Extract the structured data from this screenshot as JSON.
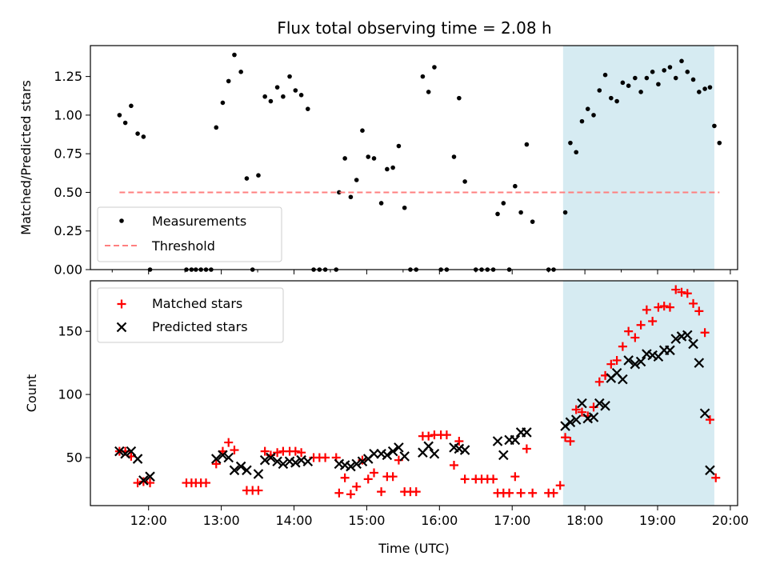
{
  "title": "Flux total observing time = 2.08 h",
  "chart_data": [
    {
      "type": "scatter",
      "ylabel": "Matched/Predicted stars",
      "xlabel": "",
      "xlim": [
        11.2,
        20.1
      ],
      "ylim": [
        0.0,
        1.45
      ],
      "yticks": [
        0.0,
        0.25,
        0.5,
        0.75,
        1.0,
        1.25
      ],
      "ytick_labels": [
        "0.00",
        "0.25",
        "0.50",
        "0.75",
        "1.00",
        "1.25"
      ],
      "shaded_x_range": [
        17.7,
        19.78
      ],
      "shade_color": "#add8e6",
      "legend": {
        "position": "lower-left",
        "entries": [
          "Measurements",
          "Threshold"
        ]
      },
      "series": [
        {
          "name": "Measurements",
          "marker": "dot",
          "color": "#000000",
          "points": [
            [
              11.6,
              1.0
            ],
            [
              11.68,
              0.95
            ],
            [
              11.76,
              1.06
            ],
            [
              11.85,
              0.88
            ],
            [
              11.93,
              0.86
            ],
            [
              12.02,
              0.0
            ],
            [
              12.52,
              0.0
            ],
            [
              12.59,
              0.0
            ],
            [
              12.65,
              0.0
            ],
            [
              12.72,
              0.0
            ],
            [
              12.79,
              0.0
            ],
            [
              12.86,
              0.0
            ],
            [
              12.93,
              0.92
            ],
            [
              13.02,
              1.08
            ],
            [
              13.1,
              1.22
            ],
            [
              13.18,
              1.39
            ],
            [
              13.27,
              1.28
            ],
            [
              13.35,
              0.59
            ],
            [
              13.43,
              0.0
            ],
            [
              13.51,
              0.61
            ],
            [
              13.6,
              1.12
            ],
            [
              13.68,
              1.09
            ],
            [
              13.77,
              1.18
            ],
            [
              13.85,
              1.12
            ],
            [
              13.94,
              1.25
            ],
            [
              14.02,
              1.16
            ],
            [
              14.1,
              1.13
            ],
            [
              14.19,
              1.04
            ],
            [
              14.27,
              0.0
            ],
            [
              14.35,
              0.0
            ],
            [
              14.43,
              0.0
            ],
            [
              14.58,
              0.0
            ],
            [
              14.62,
              0.5
            ],
            [
              14.7,
              0.72
            ],
            [
              14.78,
              0.47
            ],
            [
              14.86,
              0.58
            ],
            [
              14.94,
              0.9
            ],
            [
              15.02,
              0.73
            ],
            [
              15.1,
              0.72
            ],
            [
              15.2,
              0.43
            ],
            [
              15.28,
              0.65
            ],
            [
              15.36,
              0.66
            ],
            [
              15.44,
              0.8
            ],
            [
              15.52,
              0.4
            ],
            [
              15.6,
              0.0
            ],
            [
              15.68,
              0.0
            ],
            [
              15.77,
              1.25
            ],
            [
              15.85,
              1.15
            ],
            [
              15.93,
              1.31
            ],
            [
              16.02,
              0.0
            ],
            [
              16.1,
              0.0
            ],
            [
              16.2,
              0.73
            ],
            [
              16.27,
              1.11
            ],
            [
              16.35,
              0.57
            ],
            [
              16.5,
              0.0
            ],
            [
              16.58,
              0.0
            ],
            [
              16.66,
              0.0
            ],
            [
              16.74,
              0.0
            ],
            [
              16.8,
              0.36
            ],
            [
              16.88,
              0.43
            ],
            [
              16.96,
              0.0
            ],
            [
              17.04,
              0.54
            ],
            [
              17.12,
              0.37
            ],
            [
              17.2,
              0.81
            ],
            [
              17.28,
              0.31
            ],
            [
              17.5,
              0.0
            ],
            [
              17.57,
              0.0
            ],
            [
              17.73,
              0.37
            ],
            [
              17.8,
              0.82
            ],
            [
              17.88,
              0.76
            ],
            [
              17.96,
              0.96
            ],
            [
              18.04,
              1.04
            ],
            [
              18.12,
              1.0
            ],
            [
              18.2,
              1.16
            ],
            [
              18.28,
              1.26
            ],
            [
              18.36,
              1.11
            ],
            [
              18.44,
              1.09
            ],
            [
              18.52,
              1.21
            ],
            [
              18.6,
              1.19
            ],
            [
              18.69,
              1.24
            ],
            [
              18.77,
              1.15
            ],
            [
              18.85,
              1.24
            ],
            [
              18.93,
              1.28
            ],
            [
              19.01,
              1.2
            ],
            [
              19.09,
              1.29
            ],
            [
              19.17,
              1.31
            ],
            [
              19.25,
              1.24
            ],
            [
              19.33,
              1.35
            ],
            [
              19.41,
              1.28
            ],
            [
              19.49,
              1.23
            ],
            [
              19.57,
              1.15
            ],
            [
              19.65,
              1.17
            ],
            [
              19.72,
              1.18
            ],
            [
              19.78,
              0.93
            ],
            [
              19.85,
              0.82
            ]
          ]
        },
        {
          "name": "Threshold",
          "marker": "dashed-line",
          "color": "#ff7f7f",
          "points": [
            [
              11.6,
              0.5
            ],
            [
              19.85,
              0.5
            ]
          ]
        }
      ]
    },
    {
      "type": "scatter",
      "ylabel": "Count",
      "xlabel": "Time (UTC)",
      "xlim": [
        11.2,
        20.1
      ],
      "ylim": [
        12,
        190
      ],
      "yticks": [
        50,
        100,
        150
      ],
      "ytick_labels": [
        "50",
        "100",
        "150"
      ],
      "xticks": [
        12,
        13,
        14,
        15,
        16,
        17,
        18,
        19,
        20
      ],
      "xtick_labels": [
        "12:00",
        "13:00",
        "14:00",
        "15:00",
        "16:00",
        "17:00",
        "18:00",
        "19:00",
        "20:00"
      ],
      "shaded_x_range": [
        17.7,
        19.78
      ],
      "shade_color": "#add8e6",
      "legend": {
        "position": "top-left",
        "entries": [
          "Matched stars",
          "Predicted stars"
        ]
      },
      "series": [
        {
          "name": "Matched stars",
          "marker": "plus",
          "color": "#ff0000",
          "points": [
            [
              11.6,
              55
            ],
            [
              11.68,
              55
            ],
            [
              11.76,
              51
            ],
            [
              11.85,
              30
            ],
            [
              11.93,
              31
            ],
            [
              12.02,
              30
            ],
            [
              12.52,
              30
            ],
            [
              12.59,
              30
            ],
            [
              12.65,
              30
            ],
            [
              12.72,
              30
            ],
            [
              12.79,
              30
            ],
            [
              12.93,
              45
            ],
            [
              13.02,
              55
            ],
            [
              13.1,
              62
            ],
            [
              13.18,
              56
            ],
            [
              13.35,
              24
            ],
            [
              13.43,
              24
            ],
            [
              13.51,
              24
            ],
            [
              13.6,
              55
            ],
            [
              13.68,
              52
            ],
            [
              13.77,
              54
            ],
            [
              13.85,
              55
            ],
            [
              13.94,
              55
            ],
            [
              14.02,
              55
            ],
            [
              14.1,
              54
            ],
            [
              14.27,
              50
            ],
            [
              14.35,
              50
            ],
            [
              14.43,
              50
            ],
            [
              14.58,
              50
            ],
            [
              14.62,
              22
            ],
            [
              14.7,
              34
            ],
            [
              14.78,
              21
            ],
            [
              14.86,
              27
            ],
            [
              14.94,
              48
            ],
            [
              15.02,
              33
            ],
            [
              15.1,
              38
            ],
            [
              15.2,
              23
            ],
            [
              15.28,
              35
            ],
            [
              15.36,
              35
            ],
            [
              15.44,
              48
            ],
            [
              15.52,
              23
            ],
            [
              15.6,
              23
            ],
            [
              15.68,
              23
            ],
            [
              15.77,
              67
            ],
            [
              15.85,
              67
            ],
            [
              15.93,
              68
            ],
            [
              16.02,
              68
            ],
            [
              16.1,
              68
            ],
            [
              16.2,
              44
            ],
            [
              16.27,
              63
            ],
            [
              16.35,
              33
            ],
            [
              16.5,
              33
            ],
            [
              16.58,
              33
            ],
            [
              16.66,
              33
            ],
            [
              16.74,
              33
            ],
            [
              16.8,
              22
            ],
            [
              16.88,
              22
            ],
            [
              16.96,
              22
            ],
            [
              17.04,
              35
            ],
            [
              17.12,
              22
            ],
            [
              17.2,
              57
            ],
            [
              17.28,
              22
            ],
            [
              17.5,
              22
            ],
            [
              17.57,
              22
            ],
            [
              17.66,
              28
            ],
            [
              17.73,
              66
            ],
            [
              17.8,
              63
            ],
            [
              17.88,
              88
            ],
            [
              17.96,
              86
            ],
            [
              18.04,
              83
            ],
            [
              18.12,
              90
            ],
            [
              18.2,
              110
            ],
            [
              18.28,
              115
            ],
            [
              18.36,
              124
            ],
            [
              18.44,
              127
            ],
            [
              18.52,
              138
            ],
            [
              18.6,
              150
            ],
            [
              18.69,
              145
            ],
            [
              18.77,
              155
            ],
            [
              18.85,
              167
            ],
            [
              18.93,
              158
            ],
            [
              19.01,
              169
            ],
            [
              19.09,
              170
            ],
            [
              19.17,
              169
            ],
            [
              19.25,
              183
            ],
            [
              19.33,
              181
            ],
            [
              19.41,
              180
            ],
            [
              19.49,
              172
            ],
            [
              19.57,
              166
            ],
            [
              19.65,
              149
            ],
            [
              19.72,
              80
            ],
            [
              19.8,
              34
            ]
          ]
        },
        {
          "name": "Predicted stars",
          "marker": "x",
          "color": "#000000",
          "points": [
            [
              11.6,
              55
            ],
            [
              11.68,
              53
            ],
            [
              11.76,
              55
            ],
            [
              11.85,
              49
            ],
            [
              11.93,
              32
            ],
            [
              12.02,
              35
            ],
            [
              12.93,
              49
            ],
            [
              13.02,
              52
            ],
            [
              13.1,
              50
            ],
            [
              13.18,
              40
            ],
            [
              13.27,
              43
            ],
            [
              13.35,
              40
            ],
            [
              13.51,
              37
            ],
            [
              13.6,
              48
            ],
            [
              13.68,
              50
            ],
            [
              13.77,
              47
            ],
            [
              13.85,
              45
            ],
            [
              13.94,
              47
            ],
            [
              14.02,
              46
            ],
            [
              14.1,
              48
            ],
            [
              14.19,
              47
            ],
            [
              14.62,
              45
            ],
            [
              14.7,
              44
            ],
            [
              14.78,
              43
            ],
            [
              14.86,
              45
            ],
            [
              14.94,
              47
            ],
            [
              15.02,
              49
            ],
            [
              15.1,
              53
            ],
            [
              15.2,
              53
            ],
            [
              15.28,
              52
            ],
            [
              15.36,
              55
            ],
            [
              15.44,
              58
            ],
            [
              15.52,
              51
            ],
            [
              15.77,
              54
            ],
            [
              15.85,
              59
            ],
            [
              15.93,
              53
            ],
            [
              16.2,
              58
            ],
            [
              16.27,
              57
            ],
            [
              16.35,
              56
            ],
            [
              16.8,
              63
            ],
            [
              16.88,
              52
            ],
            [
              16.96,
              64
            ],
            [
              17.04,
              64
            ],
            [
              17.12,
              70
            ],
            [
              17.2,
              70
            ],
            [
              17.73,
              75
            ],
            [
              17.8,
              78
            ],
            [
              17.88,
              80
            ],
            [
              17.96,
              93
            ],
            [
              18.04,
              81
            ],
            [
              18.12,
              82
            ],
            [
              18.2,
              93
            ],
            [
              18.28,
              91
            ],
            [
              18.36,
              113
            ],
            [
              18.44,
              117
            ],
            [
              18.52,
              112
            ],
            [
              18.6,
              127
            ],
            [
              18.69,
              124
            ],
            [
              18.77,
              126
            ],
            [
              18.85,
              132
            ],
            [
              18.93,
              131
            ],
            [
              19.01,
              130
            ],
            [
              19.09,
              135
            ],
            [
              19.17,
              135
            ],
            [
              19.25,
              144
            ],
            [
              19.33,
              146
            ],
            [
              19.41,
              147
            ],
            [
              19.49,
              140
            ],
            [
              19.57,
              125
            ],
            [
              19.65,
              85
            ],
            [
              19.72,
              40
            ]
          ]
        }
      ]
    }
  ]
}
